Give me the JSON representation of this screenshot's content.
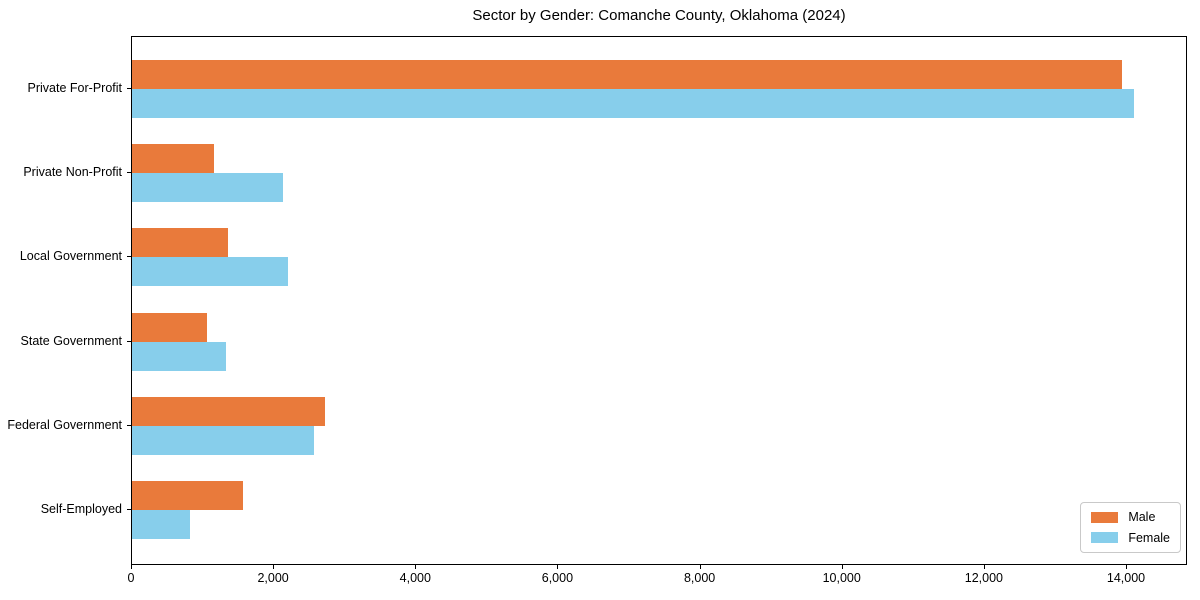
{
  "title": "Sector by Gender: Comanche County, Oklahoma (2024)",
  "chart_data": {
    "type": "bar",
    "orientation": "horizontal",
    "title": "Sector by Gender: Comanche County, Oklahoma (2024)",
    "categories": [
      "Private For-Profit",
      "Private Non-Profit",
      "Local Government",
      "State Government",
      "Federal Government",
      "Self-Employed"
    ],
    "series": [
      {
        "name": "Male",
        "color": "#e97a3b",
        "values": [
          13930,
          1150,
          1350,
          1050,
          2720,
          1560
        ]
      },
      {
        "name": "Female",
        "color": "#87ceeb",
        "values": [
          14100,
          2120,
          2200,
          1320,
          2560,
          815
        ]
      }
    ],
    "xlabel": "",
    "ylabel": "",
    "xlim": [
      0,
      14830
    ],
    "x_ticks": [
      0,
      2000,
      4000,
      6000,
      8000,
      10000,
      12000,
      14000
    ],
    "x_tick_labels": [
      "0",
      "2,000",
      "4,000",
      "6,000",
      "8,000",
      "10,000",
      "12,000",
      "14,000"
    ],
    "grid": false,
    "legend_position": "lower right",
    "legend_items": [
      {
        "label": "Male",
        "color": "#e97a3b"
      },
      {
        "label": "Female",
        "color": "#87ceeb"
      }
    ]
  }
}
